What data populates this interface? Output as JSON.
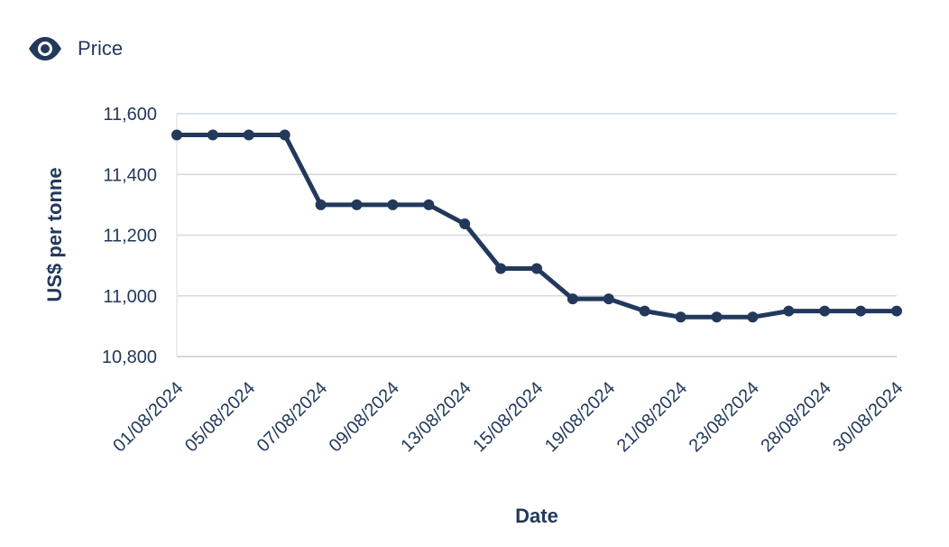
{
  "legend": {
    "label": "Price",
    "icon": "eye-icon",
    "color": "#23395b"
  },
  "chart_data": {
    "type": "line",
    "title": "",
    "xlabel": "Date",
    "ylabel": "US$ per tonne",
    "ylim": [
      10800,
      11600
    ],
    "yticks": [
      10800,
      11000,
      11200,
      11400,
      11600
    ],
    "ytick_labels": [
      "10,800",
      "11,000",
      "11,200",
      "11,400",
      "11,600"
    ],
    "grid": true,
    "legend_position": "top-left",
    "series_color": "#23395b",
    "grid_color": "#d4d8e3",
    "x": [
      "01/08/2024",
      "02/08/2024",
      "05/08/2024",
      "06/08/2024",
      "07/08/2024",
      "08/08/2024",
      "09/08/2024",
      "12/08/2024",
      "13/08/2024",
      "14/08/2024",
      "15/08/2024",
      "16/08/2024",
      "19/08/2024",
      "20/08/2024",
      "21/08/2024",
      "22/08/2024",
      "23/08/2024",
      "27/08/2024",
      "28/08/2024",
      "29/08/2024",
      "30/08/2024"
    ],
    "xtick_labels": [
      "01/08/2024",
      "05/08/2024",
      "07/08/2024",
      "09/08/2024",
      "13/08/2024",
      "15/08/2024",
      "19/08/2024",
      "21/08/2024",
      "23/08/2024",
      "28/08/2024",
      "30/08/2024"
    ],
    "series": [
      {
        "name": "Price",
        "values": [
          11530,
          11530,
          11530,
          11530,
          11300,
          11300,
          11300,
          11300,
          11237,
          11090,
          11090,
          10990,
          10990,
          10950,
          10930,
          10930,
          10930,
          10950,
          10950,
          10950,
          10950
        ]
      }
    ]
  }
}
